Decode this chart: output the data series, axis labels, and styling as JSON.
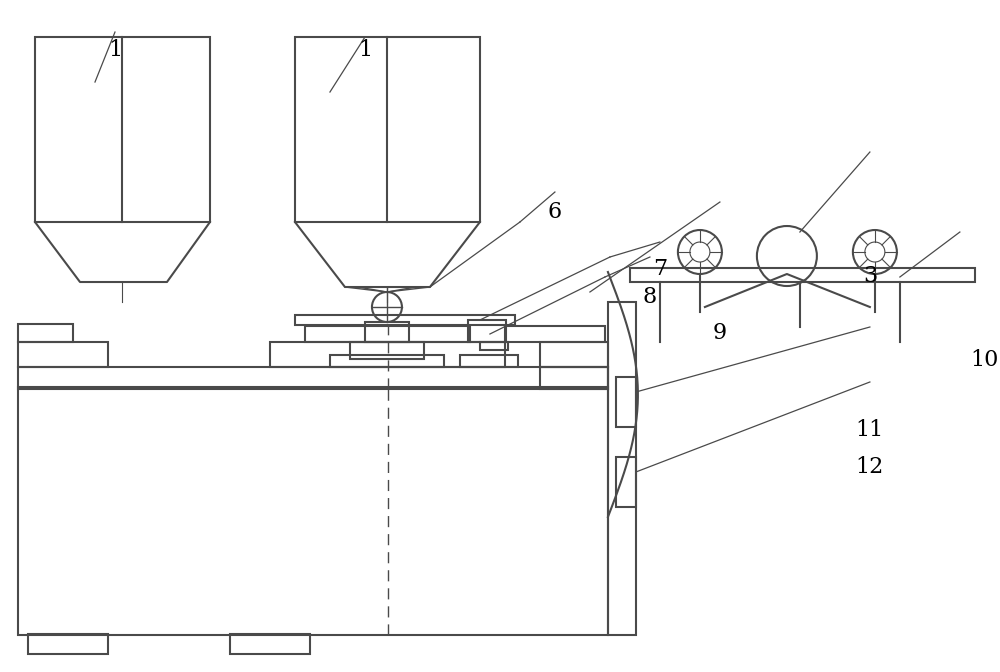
{
  "bg_color": "#ffffff",
  "line_color": "#4a4a4a",
  "line_width": 1.5,
  "fig_width": 10.0,
  "fig_height": 6.72,
  "labels": {
    "1a": [
      0.115,
      0.925,
      "1"
    ],
    "1b": [
      0.365,
      0.925,
      "1"
    ],
    "6": [
      0.555,
      0.685,
      "6"
    ],
    "7": [
      0.66,
      0.6,
      "7"
    ],
    "8": [
      0.65,
      0.558,
      "8"
    ],
    "9": [
      0.72,
      0.505,
      "9"
    ],
    "3": [
      0.87,
      0.59,
      "3"
    ],
    "10": [
      0.985,
      0.465,
      "10"
    ],
    "11": [
      0.87,
      0.36,
      "11"
    ],
    "12": [
      0.87,
      0.305,
      "12"
    ]
  }
}
